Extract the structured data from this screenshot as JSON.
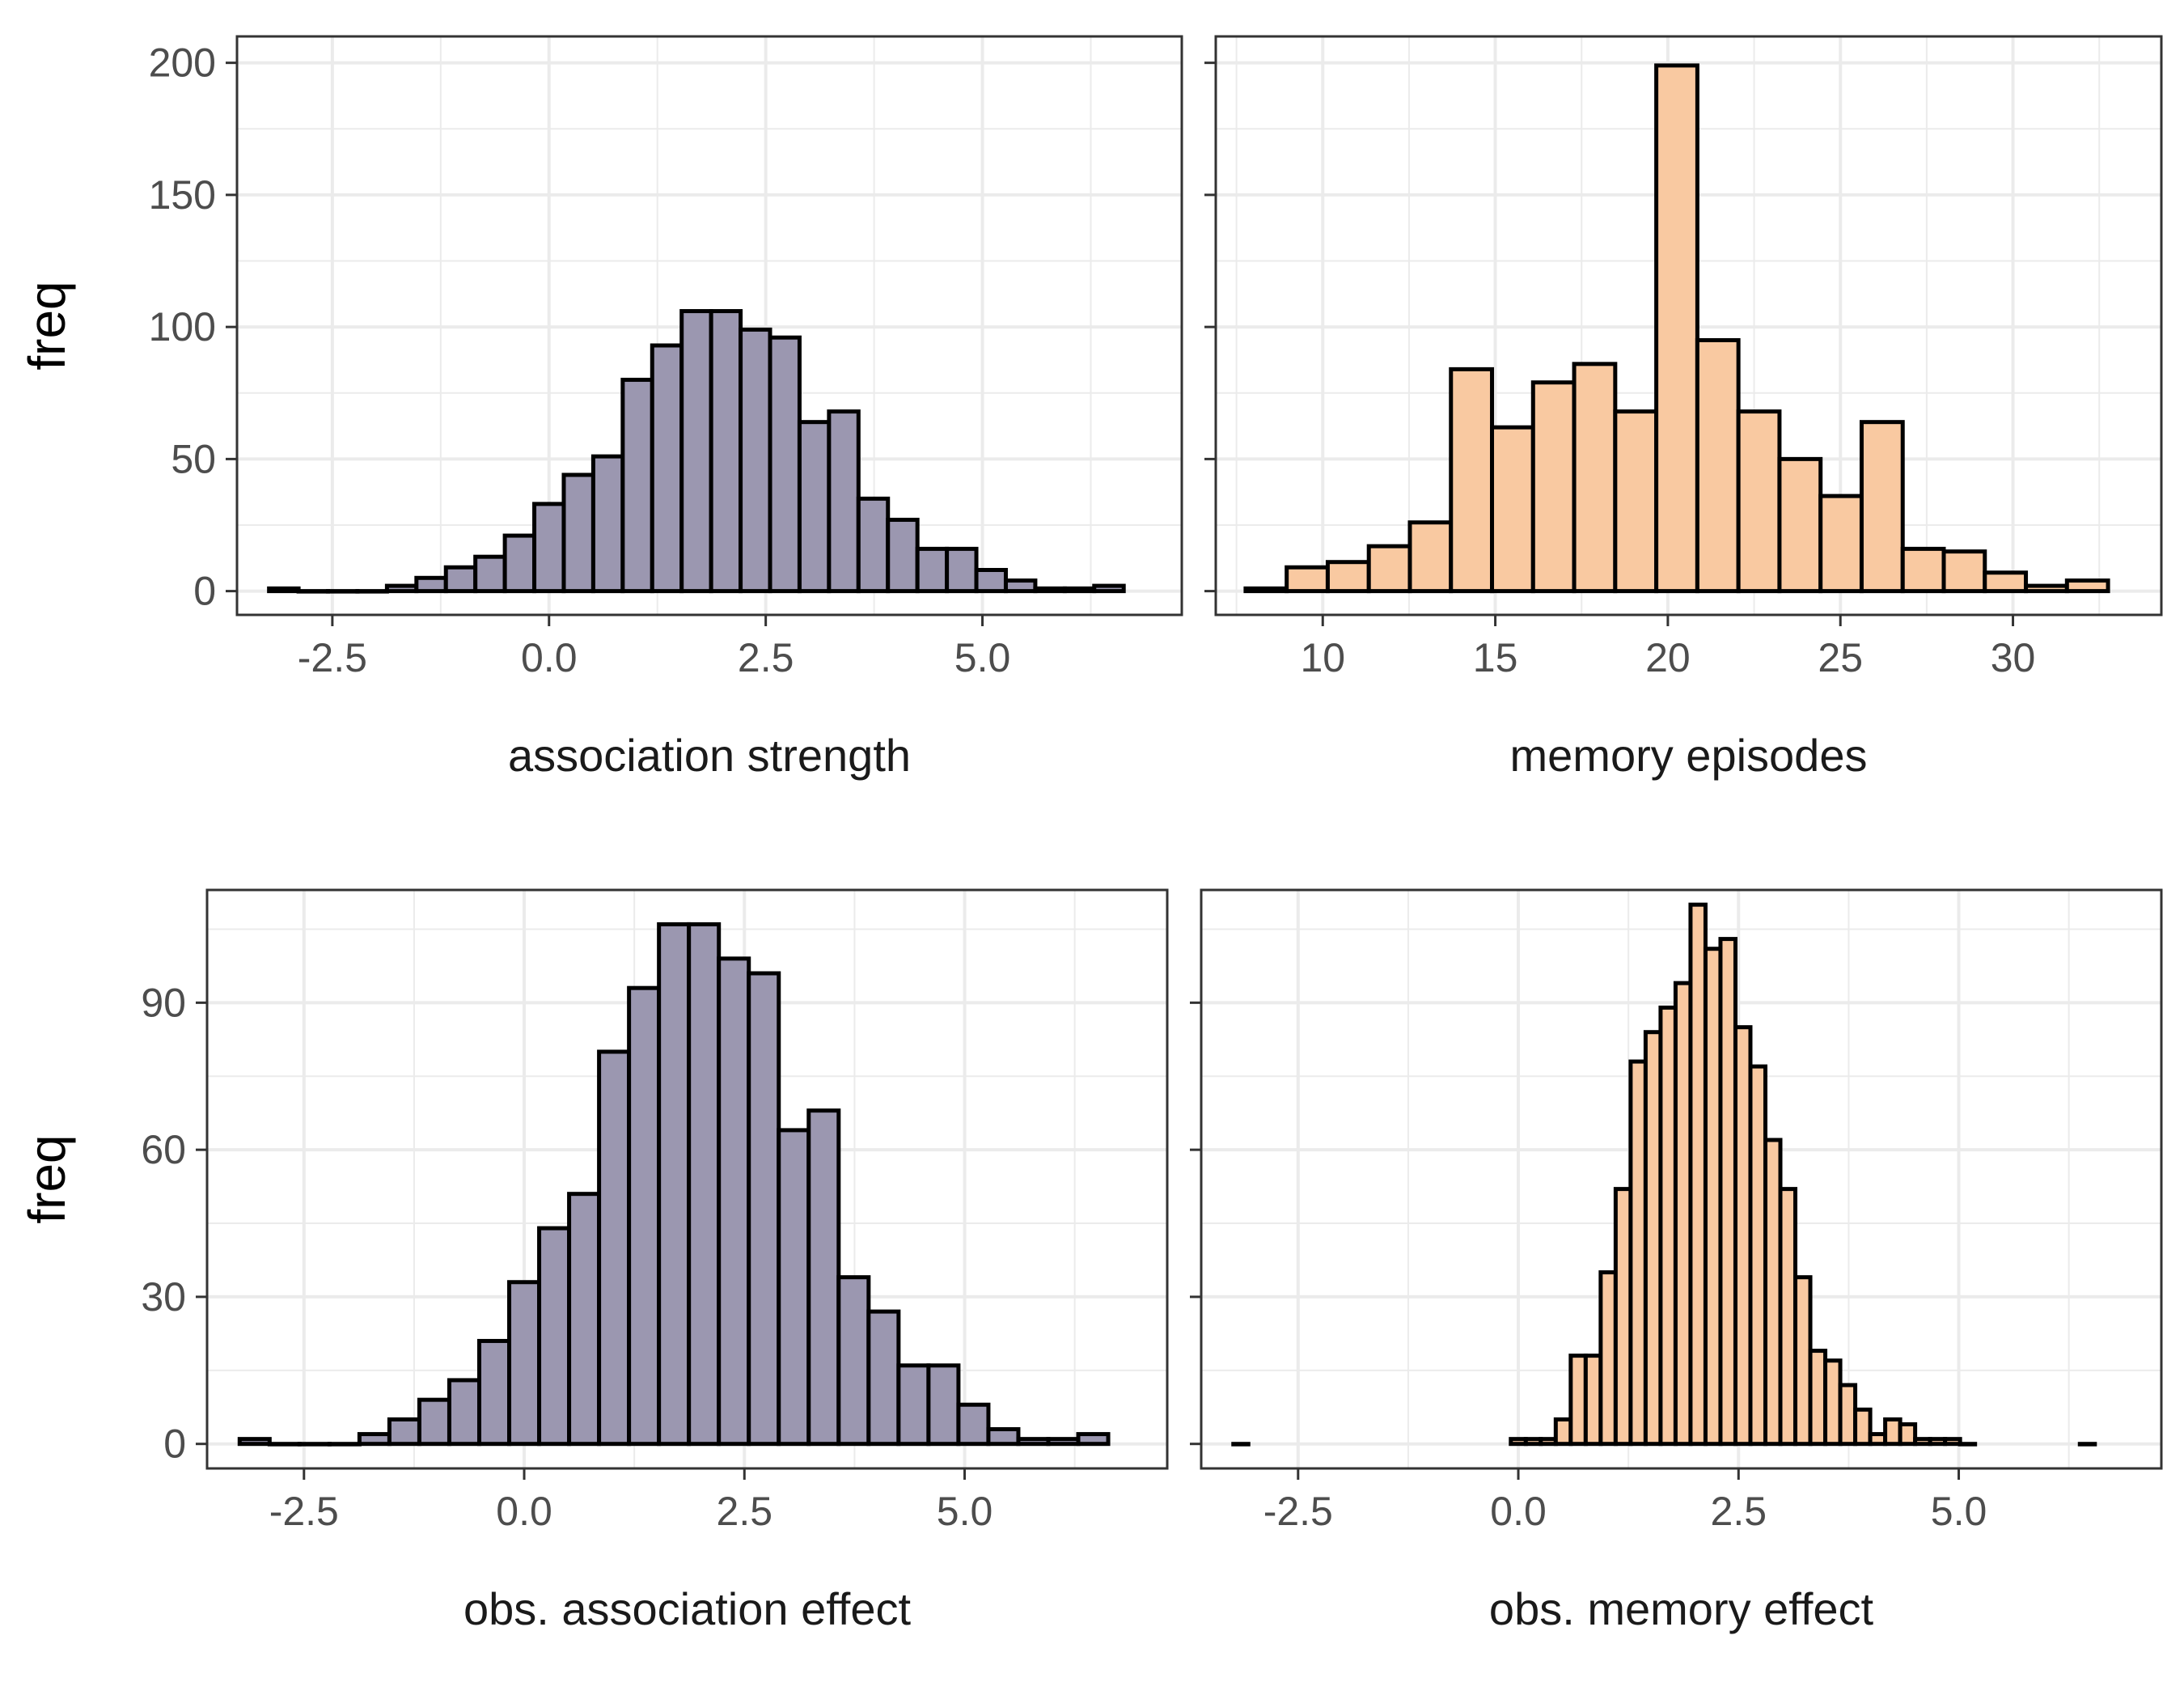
{
  "figure": {
    "background": "#ffffff"
  },
  "colors": {
    "purple_fill": "#9b97b0",
    "orange_fill": "#f9c9a1",
    "bar_outline": "#000000",
    "panel_border": "#333333",
    "grid": "#ebebeb",
    "tick_text": "#4d4d4d"
  },
  "chart_data": [
    {
      "type": "bar",
      "panel": "top-left",
      "title": "",
      "xlabel": "association strength",
      "ylabel": "freq",
      "xlim": [
        -3.6,
        7.3
      ],
      "ylim": [
        -9,
        210
      ],
      "xticks": [
        -2.5,
        0.0,
        2.5,
        5.0
      ],
      "xtick_labels": [
        "-2.5",
        "0.0",
        "2.5",
        "5.0"
      ],
      "yticks": [
        0,
        50,
        100,
        150,
        200
      ],
      "ytick_labels": [
        "0",
        "50",
        "100",
        "150",
        "200"
      ],
      "grid": true,
      "fill": "#9b97b0",
      "bin_width": 0.34,
      "bins": [
        {
          "x": -3.06,
          "count": 1
        },
        {
          "x": -2.72,
          "count": 0
        },
        {
          "x": -2.38,
          "count": 0
        },
        {
          "x": -2.04,
          "count": 0
        },
        {
          "x": -1.7,
          "count": 2
        },
        {
          "x": -1.36,
          "count": 5
        },
        {
          "x": -1.02,
          "count": 9
        },
        {
          "x": -0.68,
          "count": 13
        },
        {
          "x": -0.34,
          "count": 21
        },
        {
          "x": 0.0,
          "count": 33
        },
        {
          "x": 0.34,
          "count": 44
        },
        {
          "x": 0.68,
          "count": 51
        },
        {
          "x": 1.02,
          "count": 80
        },
        {
          "x": 1.36,
          "count": 93
        },
        {
          "x": 1.7,
          "count": 106
        },
        {
          "x": 2.04,
          "count": 106
        },
        {
          "x": 2.38,
          "count": 99
        },
        {
          "x": 2.72,
          "count": 96
        },
        {
          "x": 3.06,
          "count": 64
        },
        {
          "x": 3.4,
          "count": 68
        },
        {
          "x": 3.74,
          "count": 35
        },
        {
          "x": 4.08,
          "count": 27
        },
        {
          "x": 4.42,
          "count": 16
        },
        {
          "x": 4.76,
          "count": 16
        },
        {
          "x": 5.1,
          "count": 8
        },
        {
          "x": 5.44,
          "count": 4
        },
        {
          "x": 5.78,
          "count": 1
        },
        {
          "x": 6.12,
          "count": 1
        },
        {
          "x": 6.46,
          "count": 2
        }
      ]
    },
    {
      "type": "bar",
      "panel": "top-right",
      "title": "",
      "xlabel": "memory episodes",
      "ylabel": "",
      "xlim": [
        6.9,
        34.3
      ],
      "ylim": [
        -9,
        210
      ],
      "xticks": [
        10,
        15,
        20,
        25,
        30
      ],
      "xtick_labels": [
        "10",
        "15",
        "20",
        "25",
        "30"
      ],
      "yticks": [
        0,
        50,
        100,
        150,
        200
      ],
      "ytick_labels": [
        "",
        "",
        "",
        "",
        ""
      ],
      "grid": true,
      "fill": "#f9c9a1",
      "bin_width": 1.19,
      "bins": [
        {
          "x": 8.36,
          "count": 1
        },
        {
          "x": 9.55,
          "count": 9
        },
        {
          "x": 10.74,
          "count": 11
        },
        {
          "x": 11.93,
          "count": 17
        },
        {
          "x": 13.12,
          "count": 26
        },
        {
          "x": 14.31,
          "count": 84
        },
        {
          "x": 15.5,
          "count": 62
        },
        {
          "x": 16.69,
          "count": 79
        },
        {
          "x": 17.88,
          "count": 86
        },
        {
          "x": 19.07,
          "count": 68
        },
        {
          "x": 20.26,
          "count": 199
        },
        {
          "x": 21.45,
          "count": 95
        },
        {
          "x": 22.64,
          "count": 68
        },
        {
          "x": 23.83,
          "count": 50
        },
        {
          "x": 25.02,
          "count": 36
        },
        {
          "x": 26.21,
          "count": 64
        },
        {
          "x": 27.4,
          "count": 16
        },
        {
          "x": 28.59,
          "count": 15
        },
        {
          "x": 29.78,
          "count": 7
        },
        {
          "x": 30.97,
          "count": 2
        },
        {
          "x": 32.16,
          "count": 4
        }
      ]
    },
    {
      "type": "bar",
      "panel": "bottom-left",
      "title": "",
      "xlabel": "obs. association effect",
      "ylabel": "freq",
      "xlim": [
        -3.6,
        7.3
      ],
      "ylim": [
        -5,
        113
      ],
      "xticks": [
        -2.5,
        0.0,
        2.5,
        5.0
      ],
      "xtick_labels": [
        "-2.5",
        "0.0",
        "2.5",
        "5.0"
      ],
      "yticks": [
        0,
        30,
        60,
        90
      ],
      "ytick_labels": [
        "0",
        "30",
        "60",
        "90"
      ],
      "grid": true,
      "fill": "#9b97b0",
      "bin_width": 0.34,
      "bins": [
        {
          "x": -3.06,
          "count": 1
        },
        {
          "x": -2.72,
          "count": 0
        },
        {
          "x": -2.38,
          "count": 0
        },
        {
          "x": -2.04,
          "count": 0
        },
        {
          "x": -1.7,
          "count": 2
        },
        {
          "x": -1.36,
          "count": 5
        },
        {
          "x": -1.02,
          "count": 9
        },
        {
          "x": -0.68,
          "count": 13
        },
        {
          "x": -0.34,
          "count": 21
        },
        {
          "x": 0.0,
          "count": 33
        },
        {
          "x": 0.34,
          "count": 44
        },
        {
          "x": 0.68,
          "count": 51
        },
        {
          "x": 1.02,
          "count": 80
        },
        {
          "x": 1.36,
          "count": 93
        },
        {
          "x": 1.7,
          "count": 106
        },
        {
          "x": 2.04,
          "count": 106
        },
        {
          "x": 2.38,
          "count": 99
        },
        {
          "x": 2.72,
          "count": 96
        },
        {
          "x": 3.06,
          "count": 64
        },
        {
          "x": 3.4,
          "count": 68
        },
        {
          "x": 3.74,
          "count": 34
        },
        {
          "x": 4.08,
          "count": 27
        },
        {
          "x": 4.42,
          "count": 16
        },
        {
          "x": 4.76,
          "count": 16
        },
        {
          "x": 5.1,
          "count": 8
        },
        {
          "x": 5.44,
          "count": 3
        },
        {
          "x": 5.78,
          "count": 1
        },
        {
          "x": 6.12,
          "count": 1
        },
        {
          "x": 6.46,
          "count": 2
        }
      ]
    },
    {
      "type": "bar",
      "panel": "bottom-right",
      "title": "",
      "xlabel": "obs. memory effect",
      "ylabel": "",
      "xlim": [
        -3.6,
        7.3
      ],
      "ylim": [
        -5,
        113
      ],
      "xticks": [
        -2.5,
        0.0,
        2.5,
        5.0
      ],
      "xtick_labels": [
        "-2.5",
        "0.0",
        "2.5",
        "5.0"
      ],
      "yticks": [
        0,
        30,
        60,
        90
      ],
      "ytick_labels": [
        "",
        "",
        "",
        ""
      ],
      "grid": true,
      "fill": "#f9c9a1",
      "bin_width": 0.17,
      "bins": [
        {
          "x": -3.15,
          "count": 0
        },
        {
          "x": 0.0,
          "count": 1
        },
        {
          "x": 0.17,
          "count": 1
        },
        {
          "x": 0.34,
          "count": 1
        },
        {
          "x": 0.51,
          "count": 5
        },
        {
          "x": 0.68,
          "count": 18
        },
        {
          "x": 0.85,
          "count": 18
        },
        {
          "x": 1.02,
          "count": 35
        },
        {
          "x": 1.19,
          "count": 52
        },
        {
          "x": 1.36,
          "count": 78
        },
        {
          "x": 1.53,
          "count": 84
        },
        {
          "x": 1.7,
          "count": 89
        },
        {
          "x": 1.87,
          "count": 94
        },
        {
          "x": 2.04,
          "count": 110
        },
        {
          "x": 2.21,
          "count": 101
        },
        {
          "x": 2.38,
          "count": 103
        },
        {
          "x": 2.55,
          "count": 85
        },
        {
          "x": 2.72,
          "count": 77
        },
        {
          "x": 2.89,
          "count": 62
        },
        {
          "x": 3.06,
          "count": 52
        },
        {
          "x": 3.23,
          "count": 34
        },
        {
          "x": 3.4,
          "count": 19
        },
        {
          "x": 3.57,
          "count": 17
        },
        {
          "x": 3.74,
          "count": 12
        },
        {
          "x": 3.91,
          "count": 7
        },
        {
          "x": 4.08,
          "count": 2
        },
        {
          "x": 4.25,
          "count": 5
        },
        {
          "x": 4.42,
          "count": 4
        },
        {
          "x": 4.59,
          "count": 1
        },
        {
          "x": 4.76,
          "count": 1
        },
        {
          "x": 4.93,
          "count": 1
        },
        {
          "x": 5.1,
          "count": 0
        },
        {
          "x": 6.46,
          "count": 0
        }
      ]
    }
  ]
}
